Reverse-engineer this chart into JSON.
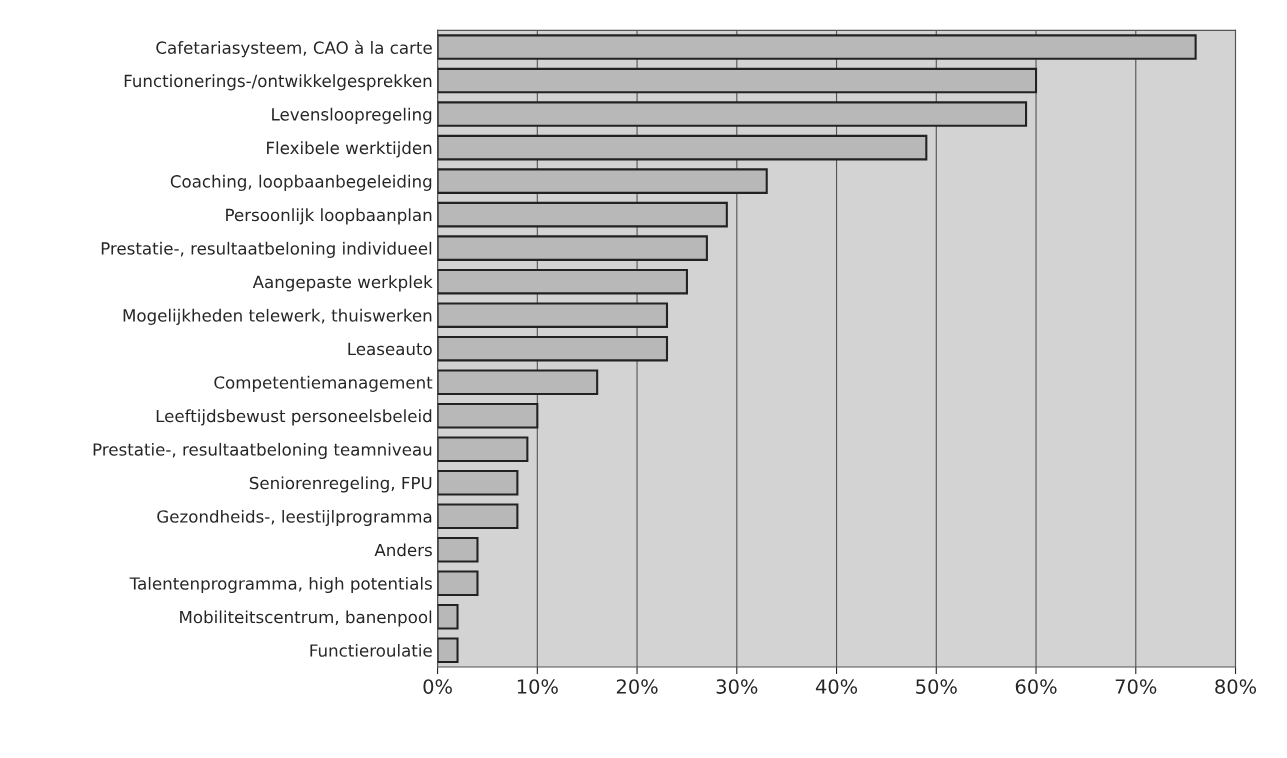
{
  "chart_data": {
    "type": "bar",
    "orientation": "horizontal",
    "categories": [
      "Cafetariasysteem, CAO à la carte",
      "Functionerings-/ontwikkelgesprekken",
      "Levensloopregeling",
      "Flexibele werktijden",
      "Coaching, loopbaanbegeleiding",
      "Persoonlijk loopbaanplan",
      "Prestatie-, resultaatbeloning individueel",
      "Aangepaste werkplek",
      "Mogelijkheden telewerk, thuiswerken",
      "Leaseauto",
      "Competentiemanagement",
      "Leeftijdsbewust personeelsbeleid",
      "Prestatie-, resultaatbeloning teamniveau",
      "Seniorenregeling, FPU",
      "Gezondheids-, leestijlprogramma",
      "Anders",
      "Talentenprogramma, high potentials",
      "Mobiliteitscentrum, banenpool",
      "Functieroulatie"
    ],
    "values": [
      76,
      60,
      59,
      49,
      33,
      29,
      27,
      25,
      23,
      23,
      16,
      10,
      9,
      8,
      8,
      4,
      4,
      2,
      2
    ],
    "color": "#b8b8b8",
    "xlim": [
      0,
      80
    ],
    "xticks": [
      {
        "value": 0,
        "label": "0%"
      },
      {
        "value": 10,
        "label": "10%"
      },
      {
        "value": 20,
        "label": "20%"
      },
      {
        "value": 30,
        "label": "30%"
      },
      {
        "value": 40,
        "label": "40%"
      },
      {
        "value": 50,
        "label": "50%"
      },
      {
        "value": 60,
        "label": "60%"
      },
      {
        "value": 70,
        "label": "70%"
      },
      {
        "value": 80,
        "label": "80%"
      }
    ],
    "grid": "x",
    "legend": false
  }
}
